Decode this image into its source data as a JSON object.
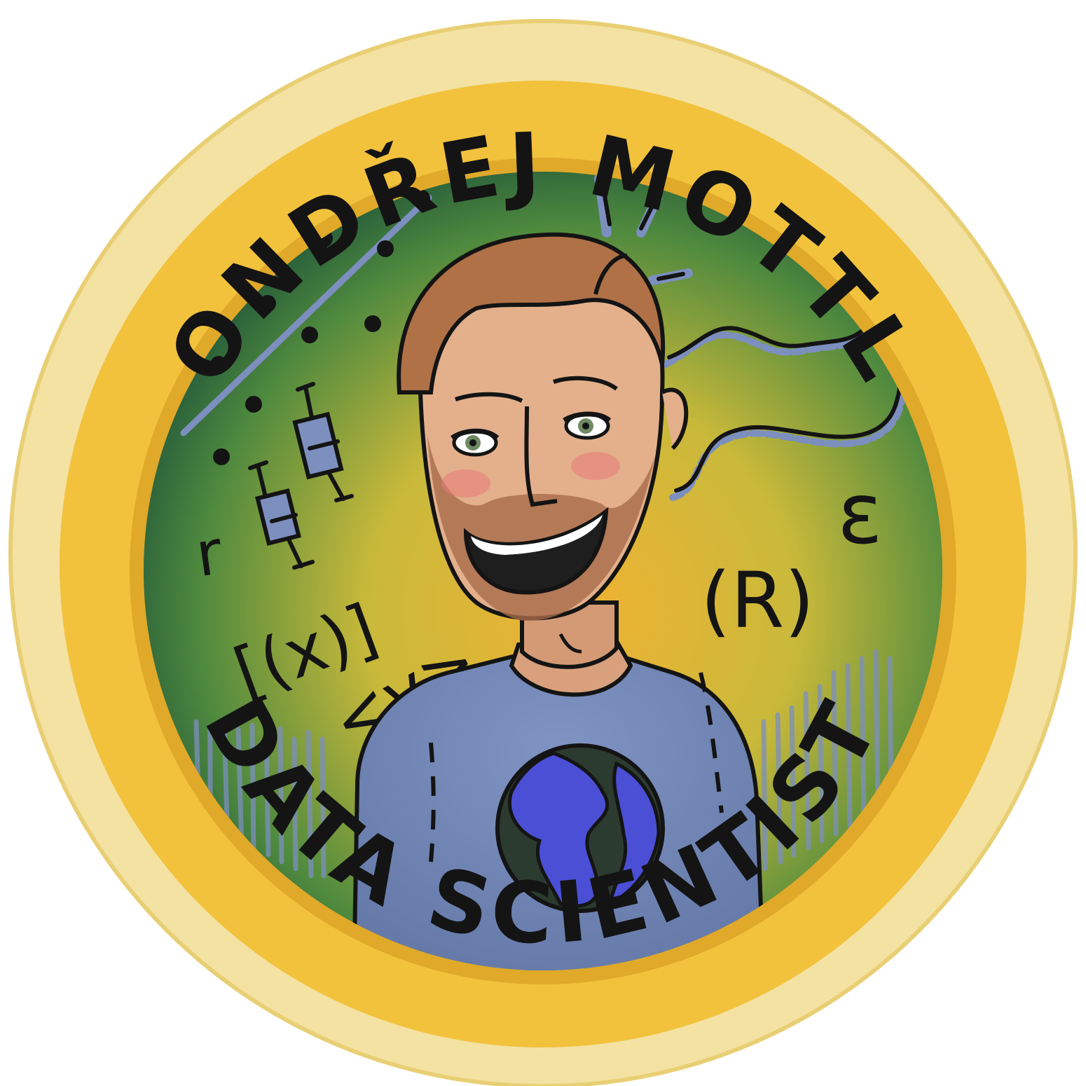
{
  "badge": {
    "top_text": "ONDŘEJ MOTTL",
    "bottom_text": "DATA SCIENTIST"
  },
  "doodles": {
    "r_letter": "r",
    "bracket_expr": "[(x)]",
    "angle_expr": "<y>",
    "r_in_parens": "(R)",
    "epsilon": "ε"
  },
  "colors": {
    "ring": "#f3c43c",
    "ring_outer": "#f5e3a6",
    "bg_green": "#2f6b3a",
    "bg_yellow": "#e6b534",
    "shirt": "#7389b8",
    "hair": "#b07147",
    "skin": "#e3b08b",
    "beard": "#a86b4a",
    "earth_ocean": "#4a4fd6",
    "earth_land": "#2c3b2f",
    "accent_blue": "#7c8fbf"
  }
}
